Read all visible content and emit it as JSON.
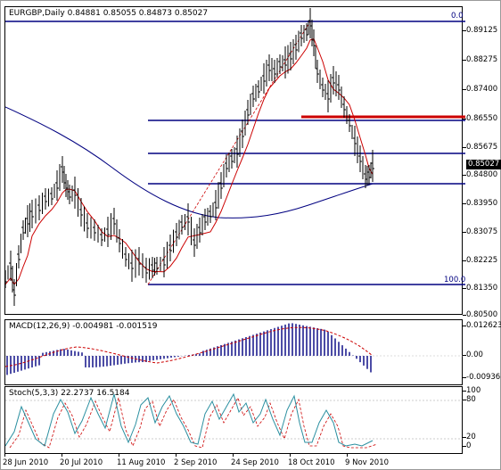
{
  "header": {
    "title": "EURGBP,Daily",
    "ohlc": "0.84881 0.85055 0.84873 0.85027"
  },
  "price_axis": {
    "labels": [
      "0.89125",
      "0.88275",
      "0.87400",
      "0.86550",
      "0.85675",
      "0.84800",
      "0.83950",
      "0.83075",
      "0.82225",
      "0.81350",
      "0.80500"
    ],
    "current_price": "0.85027"
  },
  "fibonacci": {
    "top_label": "0.0",
    "bottom_label": "100.0"
  },
  "macd": {
    "title": "MACD(12,26,9) -0.004981 -0.001519",
    "axis_labels": [
      "0.012623",
      "0.00",
      "-0.00936"
    ]
  },
  "stoch": {
    "title": "Stoch(5,3,3) 22.2737 16.5184",
    "axis_labels": [
      "100",
      "80",
      "20",
      "0"
    ]
  },
  "time_axis": {
    "labels": [
      "28 Jun 2010",
      "20 Jul 2010",
      "11 Aug 2010",
      "2 Sep 2010",
      "24 Sep 2010",
      "18 Oct 2010",
      "9 Nov 2010"
    ]
  },
  "colors": {
    "fib_lines": "#000080",
    "resistance_line": "#cc0000",
    "sma_fast": "#cc0000",
    "sma_slow": "#000080",
    "macd_histogram": "#000080",
    "macd_signal": "#cc0000",
    "stoch_main": "#2a8fa0",
    "stoch_signal": "#cc0000"
  }
}
